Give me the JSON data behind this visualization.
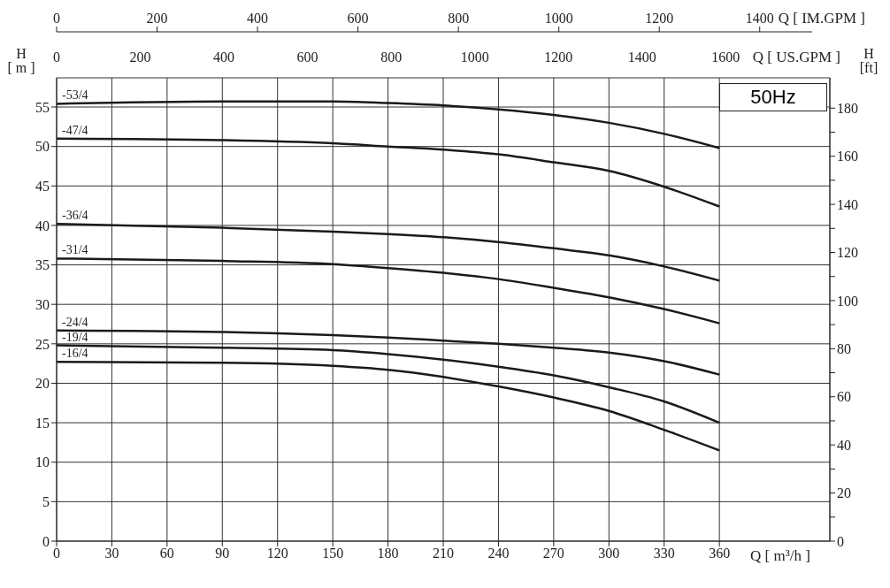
{
  "chart_data": {
    "type": "line",
    "xlabel": "Q [ m³/h ]",
    "ylabel": "H [ m ]",
    "y2label": "H [ft]",
    "x2label": "Q [ US.GPM ]",
    "annotations": [
      "50Hz",
      "Q [ IM.GPM ]",
      "0",
      "200",
      "400",
      "600",
      "800",
      "1000",
      "1200",
      "1400"
    ],
    "x": [
      0,
      90,
      150,
      180,
      210,
      240,
      270,
      300,
      330,
      360
    ],
    "xlim": [
      0,
      420
    ],
    "xticks": [
      0,
      30,
      60,
      90,
      120,
      150,
      180,
      210,
      240,
      270,
      300,
      330,
      360
    ],
    "ylim": [
      0,
      58.7
    ],
    "yticks": [
      0,
      5,
      10,
      15,
      20,
      25,
      30,
      35,
      40,
      45,
      50,
      55
    ],
    "y2lim": [
      0,
      192.6
    ],
    "y2ticks": [
      0,
      {
        "value": 10,
        "label": null
      },
      20,
      {
        "value": 30,
        "label": null
      },
      40,
      {
        "value": 50,
        "label": null
      },
      60,
      {
        "value": 70,
        "label": null
      },
      80,
      {
        "value": 90,
        "label": null
      },
      100,
      {
        "value": 110,
        "label": null
      },
      120,
      {
        "value": 130,
        "label": null
      },
      140,
      {
        "value": 150,
        "label": null
      },
      160,
      {
        "value": 170,
        "label": null
      },
      180
    ],
    "x2lim": [
      0,
      1849
    ],
    "x2ticks": [
      0,
      200,
      400,
      600,
      800,
      1000,
      1200,
      1400,
      1600
    ],
    "grid": true,
    "marker": "none",
    "line_style": "solid",
    "series": [
      {
        "name": "-53/4",
        "color": "#1a1a1a",
        "values": [
          55.4,
          55.7,
          55.7,
          55.5,
          55.2,
          54.7,
          54.0,
          53.0,
          51.6,
          49.8
        ]
      },
      {
        "name": "-47/4",
        "color": "#1a1a1a",
        "values": [
          51.0,
          50.8,
          50.4,
          50.0,
          49.6,
          49.0,
          48.0,
          46.9,
          44.9,
          42.4
        ]
      },
      {
        "name": "-36/4",
        "color": "#1a1a1a",
        "values": [
          40.2,
          39.7,
          39.2,
          38.9,
          38.5,
          37.9,
          37.1,
          36.2,
          34.8,
          33.0
        ]
      },
      {
        "name": "-31/4",
        "color": "#1a1a1a",
        "values": [
          35.8,
          35.5,
          35.1,
          34.6,
          34.0,
          33.2,
          32.1,
          30.9,
          29.4,
          27.6
        ]
      },
      {
        "name": "-24/4",
        "color": "#1a1a1a",
        "values": [
          26.7,
          26.5,
          26.1,
          25.8,
          25.4,
          25.0,
          24.5,
          23.9,
          22.8,
          21.1
        ]
      },
      {
        "name": "-19/4",
        "color": "#1a1a1a",
        "values": [
          24.8,
          24.5,
          24.2,
          23.7,
          23.0,
          22.1,
          21.0,
          19.5,
          17.7,
          15.0
        ]
      },
      {
        "name": "-16/4",
        "color": "#1a1a1a",
        "values": [
          22.7,
          22.6,
          22.2,
          21.7,
          20.8,
          19.6,
          18.2,
          16.5,
          14.1,
          11.5
        ]
      }
    ]
  }
}
